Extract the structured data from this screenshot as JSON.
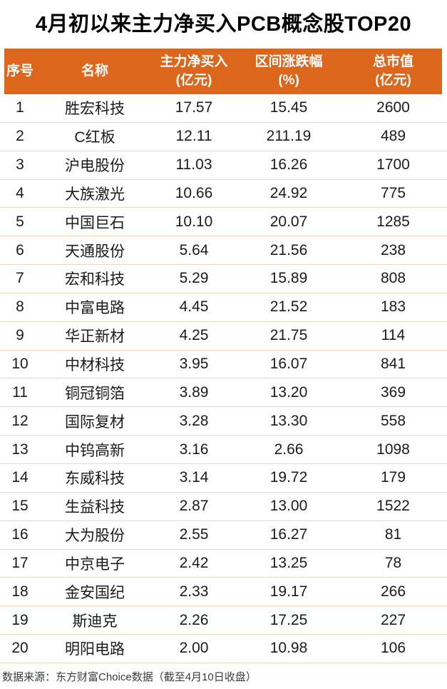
{
  "title": "4月初以来主力净买入PCB概念股TOP20",
  "colors": {
    "header_bg": "#DC661B",
    "header_text": "#FFFFFF",
    "divider": "#F2D7BB",
    "title_text": "#000000",
    "body_text": "#1B1B1B",
    "footer_text": "#3A3A3A",
    "watermark": "#E8E9EC"
  },
  "chart_data": {
    "type": "table",
    "title": "4月初以来主力净买入PCB概念股TOP20",
    "columns": [
      {
        "key": "rank",
        "label": "序号",
        "unit": ""
      },
      {
        "key": "name",
        "label": "名称",
        "unit": ""
      },
      {
        "key": "net_buy",
        "label": "主力净买入",
        "unit": "(亿元)"
      },
      {
        "key": "change_pct",
        "label": "区间涨跌幅",
        "unit": "(%)"
      },
      {
        "key": "market_cap",
        "label": "总市值",
        "unit": "(亿元)"
      }
    ],
    "rows": [
      [
        "1",
        "胜宏科技",
        "17.57",
        "15.45",
        "2600"
      ],
      [
        "2",
        "C红板",
        "12.11",
        "211.19",
        "489"
      ],
      [
        "3",
        "沪电股份",
        "11.03",
        "16.26",
        "1700"
      ],
      [
        "4",
        "大族激光",
        "10.66",
        "24.92",
        "775"
      ],
      [
        "5",
        "中国巨石",
        "10.10",
        "20.07",
        "1285"
      ],
      [
        "6",
        "天通股份",
        "5.64",
        "21.56",
        "238"
      ],
      [
        "7",
        "宏和科技",
        "5.29",
        "15.89",
        "808"
      ],
      [
        "8",
        "中富电路",
        "4.45",
        "21.52",
        "183"
      ],
      [
        "9",
        "华正新材",
        "4.25",
        "21.75",
        "114"
      ],
      [
        "10",
        "中材科技",
        "3.95",
        "16.07",
        "841"
      ],
      [
        "11",
        "铜冠铜箔",
        "3.89",
        "13.20",
        "369"
      ],
      [
        "12",
        "国际复材",
        "3.28",
        "13.30",
        "558"
      ],
      [
        "13",
        "中钨高新",
        "3.16",
        "2.66",
        "1098"
      ],
      [
        "14",
        "东威科技",
        "3.14",
        "19.72",
        "179"
      ],
      [
        "15",
        "生益科技",
        "2.87",
        "13.00",
        "1522"
      ],
      [
        "16",
        "大为股份",
        "2.55",
        "16.27",
        "81"
      ],
      [
        "17",
        "中京电子",
        "2.42",
        "13.25",
        "78"
      ],
      [
        "18",
        "金安国纪",
        "2.33",
        "19.17",
        "266"
      ],
      [
        "19",
        "斯迪克",
        "2.26",
        "17.25",
        "227"
      ],
      [
        "20",
        "明阳电路",
        "2.00",
        "10.98",
        "106"
      ]
    ]
  },
  "watermark": {
    "text": "东方财富"
  },
  "footer": {
    "source": "数据来源：东方财富Choice数据（截至4月10日收盘）"
  }
}
